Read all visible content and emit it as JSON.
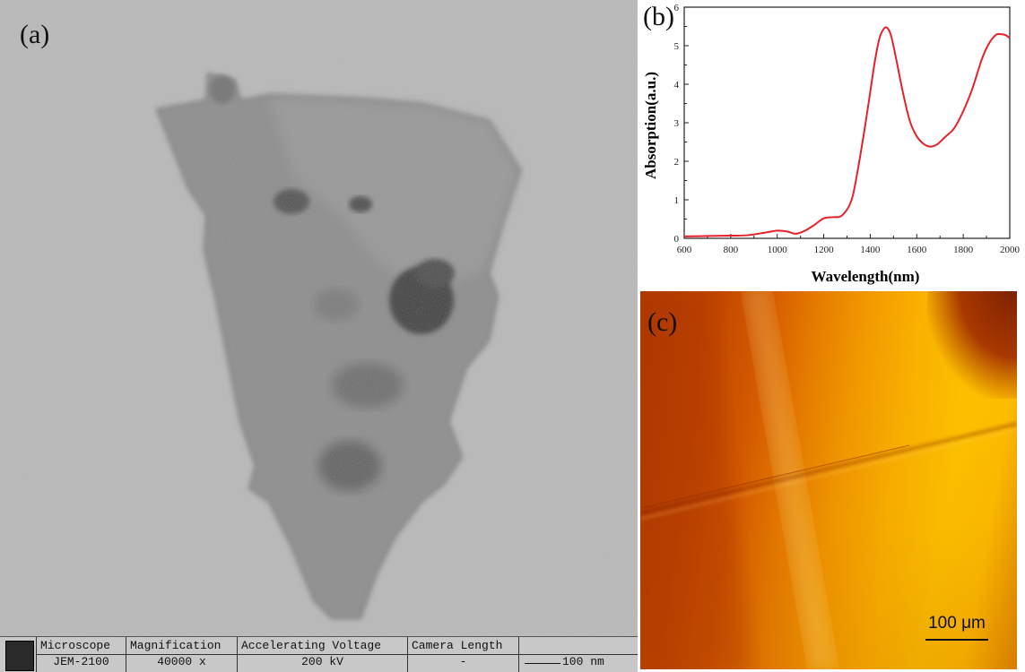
{
  "panel_labels": {
    "a": "(a)",
    "b": "(b)",
    "c": "(c)"
  },
  "tem_info_bar": {
    "headers": [
      "Microscope",
      "Magnification",
      "Accelerating Voltage",
      "Camera Length"
    ],
    "values": [
      "JEM-2100",
      "40000 x",
      "200 kV",
      "-"
    ],
    "scale_bar": "100 nm"
  },
  "optical_scale_bar": "100 μm",
  "chart_data": {
    "type": "line",
    "title": "",
    "xlabel": "Wavelength(nm)",
    "ylabel": "Absorption(a.u.)",
    "xlim": [
      600,
      2000
    ],
    "ylim": [
      0,
      6
    ],
    "xticks": [
      "600",
      "800",
      "1000",
      "1200",
      "1400",
      "1600",
      "1800",
      "2000"
    ],
    "yticks": [
      "0",
      "1",
      "2",
      "3",
      "4",
      "5",
      "6"
    ],
    "grid": false,
    "line_color": "#e8202a",
    "series": [
      {
        "name": "",
        "x": [
          600,
          700,
          800,
          870,
          950,
          1000,
          1040,
          1080,
          1120,
          1160,
          1200,
          1240,
          1280,
          1320,
          1350,
          1380,
          1400,
          1420,
          1440,
          1460,
          1475,
          1490,
          1510,
          1540,
          1570,
          1600,
          1630,
          1660,
          1690,
          1720,
          1760,
          1800,
          1840,
          1880,
          1910,
          1940,
          1960,
          1980,
          2000
        ],
        "y": [
          0.05,
          0.06,
          0.07,
          0.08,
          0.15,
          0.2,
          0.18,
          0.12,
          0.2,
          0.35,
          0.52,
          0.55,
          0.6,
          1.0,
          1.9,
          3.0,
          3.8,
          4.6,
          5.2,
          5.45,
          5.45,
          5.25,
          4.7,
          3.8,
          3.05,
          2.65,
          2.45,
          2.38,
          2.45,
          2.62,
          2.85,
          3.3,
          3.9,
          4.65,
          5.05,
          5.28,
          5.3,
          5.28,
          5.2
        ]
      }
    ]
  }
}
